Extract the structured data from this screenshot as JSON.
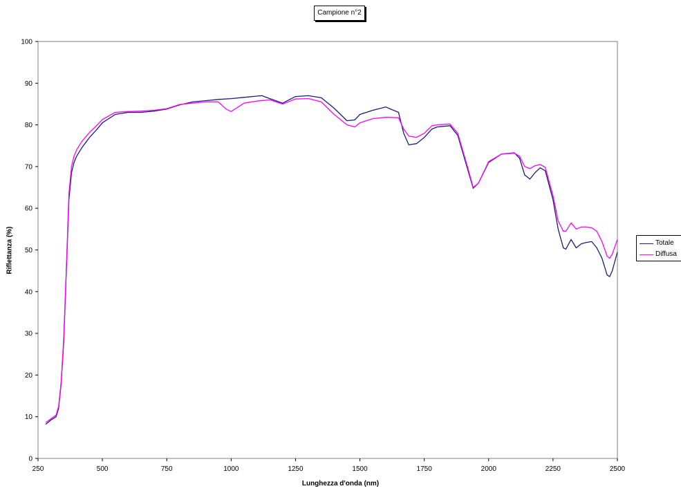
{
  "chart_data": {
    "type": "line",
    "title": "Campione n°2",
    "xlabel": "Lunghezza d'onda (nm)",
    "ylabel": "Riflettanza (%)",
    "xlim": [
      250,
      2500
    ],
    "ylim": [
      0,
      100
    ],
    "x_ticks": [
      "250",
      "500",
      "750",
      "1000",
      "1250",
      "1500",
      "1750",
      "2000",
      "2250",
      "2500"
    ],
    "y_ticks": [
      "0",
      "10",
      "20",
      "30",
      "40",
      "50",
      "60",
      "70",
      "80",
      "90",
      "100"
    ],
    "grid": false,
    "legend_position": "right",
    "series": [
      {
        "name": "Totale",
        "color": "#1a1a78",
        "x": [
          280,
          300,
          320,
          330,
          340,
          350,
          360,
          370,
          380,
          390,
          400,
          420,
          450,
          480,
          500,
          550,
          600,
          650,
          700,
          750,
          800,
          850,
          900,
          950,
          1000,
          1050,
          1100,
          1120,
          1150,
          1200,
          1250,
          1300,
          1350,
          1400,
          1450,
          1480,
          1500,
          1550,
          1600,
          1650,
          1670,
          1690,
          1720,
          1750,
          1780,
          1800,
          1850,
          1880,
          1920,
          1940,
          1960,
          2000,
          2050,
          2100,
          2120,
          2140,
          2160,
          2180,
          2200,
          2220,
          2250,
          2270,
          2290,
          2300,
          2320,
          2340,
          2360,
          2380,
          2400,
          2420,
          2440,
          2460,
          2470,
          2480,
          2500
        ],
        "y": [
          8.2,
          9.2,
          10.0,
          12.0,
          18.0,
          28.0,
          45.0,
          62.0,
          68.5,
          71.0,
          72.5,
          74.5,
          77.0,
          79.0,
          80.5,
          82.5,
          83.0,
          83.0,
          83.3,
          83.8,
          84.8,
          85.5,
          85.8,
          86.1,
          86.3,
          86.6,
          86.9,
          87.0,
          86.3,
          85.2,
          86.8,
          87.0,
          86.5,
          84.0,
          81.0,
          81.2,
          82.5,
          83.5,
          84.3,
          83.0,
          78.0,
          75.2,
          75.5,
          77.0,
          79.0,
          79.5,
          79.8,
          77.5,
          69.0,
          64.8,
          66.0,
          71.0,
          73.0,
          73.3,
          72.0,
          68.0,
          67.0,
          68.5,
          69.7,
          69.0,
          62.0,
          55.0,
          50.5,
          50.2,
          52.5,
          50.5,
          51.5,
          51.8,
          52.0,
          50.5,
          48.0,
          44.0,
          43.6,
          45.0,
          49.5
        ]
      },
      {
        "name": "Diffusa",
        "color": "#ff00ff",
        "x": [
          280,
          300,
          320,
          330,
          340,
          350,
          360,
          370,
          380,
          390,
          400,
          420,
          450,
          480,
          500,
          550,
          600,
          650,
          700,
          750,
          800,
          850,
          900,
          950,
          980,
          1000,
          1050,
          1100,
          1150,
          1200,
          1250,
          1300,
          1350,
          1400,
          1450,
          1480,
          1500,
          1550,
          1600,
          1650,
          1670,
          1690,
          1720,
          1750,
          1780,
          1800,
          1850,
          1880,
          1920,
          1940,
          1960,
          2000,
          2050,
          2100,
          2120,
          2140,
          2160,
          2180,
          2200,
          2220,
          2250,
          2270,
          2290,
          2300,
          2320,
          2340,
          2360,
          2380,
          2400,
          2420,
          2440,
          2460,
          2470,
          2480,
          2500
        ],
        "y": [
          8.6,
          9.5,
          10.4,
          12.5,
          18.5,
          29.0,
          46.0,
          63.5,
          70.0,
          72.5,
          74.0,
          76.0,
          78.2,
          80.0,
          81.3,
          83.0,
          83.2,
          83.3,
          83.5,
          83.9,
          84.9,
          85.2,
          85.5,
          85.5,
          83.8,
          83.2,
          85.2,
          85.7,
          86.0,
          85.0,
          86.2,
          86.3,
          85.5,
          82.5,
          80.0,
          79.5,
          80.5,
          81.5,
          81.8,
          81.7,
          79.0,
          77.3,
          77.0,
          78.0,
          79.8,
          80.0,
          80.2,
          78.0,
          69.5,
          65.0,
          66.0,
          71.2,
          73.0,
          73.2,
          72.5,
          70.0,
          69.5,
          70.2,
          70.5,
          69.8,
          63.0,
          57.0,
          54.5,
          54.5,
          56.5,
          55.0,
          55.5,
          55.5,
          55.3,
          54.5,
          52.0,
          48.5,
          48.0,
          49.0,
          52.5
        ]
      }
    ]
  }
}
